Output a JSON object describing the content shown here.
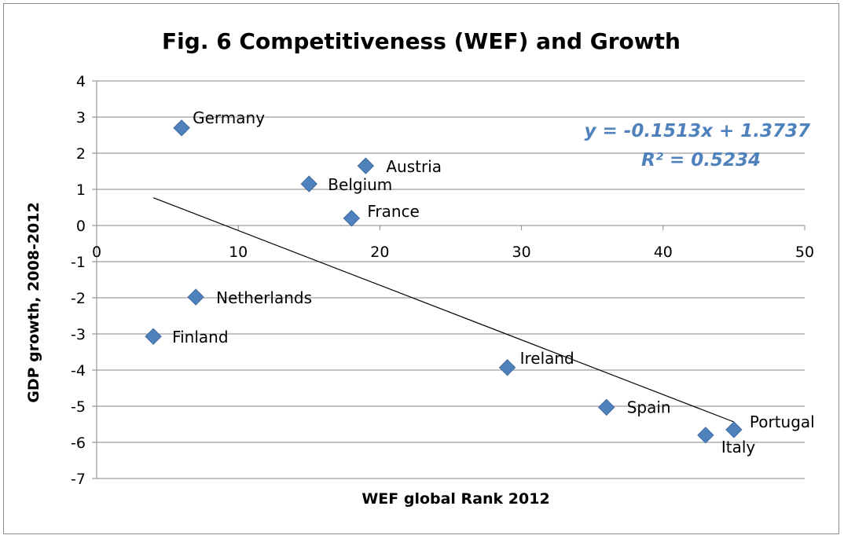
{
  "chart_data": {
    "type": "scatter",
    "title": "Fig. 6 Competitiveness (WEF) and Growth",
    "xlabel": "WEF global Rank 2012",
    "ylabel": "GDP growth, 2008-2012",
    "xlim": [
      0,
      50
    ],
    "ylim": [
      -7,
      4
    ],
    "xticks": [
      0,
      10,
      20,
      30,
      40,
      50
    ],
    "yticks": [
      4,
      3,
      2,
      1,
      0,
      -1,
      -2,
      -3,
      -4,
      -5,
      -6,
      -7
    ],
    "grid": "horizontal",
    "legend": "none",
    "marker": "diamond",
    "marker_color": "#4F81BD",
    "points": [
      {
        "label": "Germany",
        "x": 6,
        "y": 2.7
      },
      {
        "label": "Austria",
        "x": 19,
        "y": 1.65
      },
      {
        "label": "Belgium",
        "x": 15,
        "y": 1.15
      },
      {
        "label": "France",
        "x": 18,
        "y": 0.2
      },
      {
        "label": "Netherlands",
        "x": 7,
        "y": -1.98
      },
      {
        "label": "Finland",
        "x": 4,
        "y": -3.07
      },
      {
        "label": "Ireland",
        "x": 29,
        "y": -3.93
      },
      {
        "label": "Spain",
        "x": 36,
        "y": -5.03
      },
      {
        "label": "Portugal",
        "x": 45,
        "y": -5.65
      },
      {
        "label": "Italy",
        "x": 43,
        "y": -5.8
      }
    ],
    "trendline": {
      "type": "linear",
      "slope": -0.1513,
      "intercept": 1.3737,
      "x_range": [
        4,
        45
      ],
      "color": "#000000",
      "equation": "y = -0.1513x + 1.3737",
      "r_squared": "R² = 0.5234",
      "text_color": "#4F81BD"
    }
  }
}
